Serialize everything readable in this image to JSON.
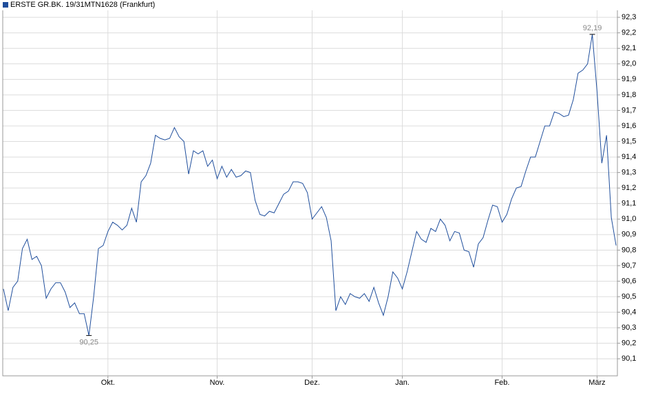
{
  "chart_data": {
    "type": "line",
    "series": [
      {
        "name": "ERSTE GR.BK. 19/31MTN1628 (Frankfurt)",
        "color": "#1f4e9c",
        "values": [
          90.55,
          90.41,
          90.56,
          90.6,
          90.81,
          90.87,
          90.74,
          90.76,
          90.7,
          90.49,
          90.55,
          90.59,
          90.59,
          90.53,
          90.43,
          90.46,
          90.39,
          90.39,
          90.25,
          90.5,
          90.81,
          90.83,
          90.92,
          90.98,
          90.96,
          90.93,
          90.96,
          91.07,
          90.98,
          91.24,
          91.28,
          91.36,
          91.54,
          91.52,
          91.51,
          91.52,
          91.59,
          91.53,
          91.5,
          91.29,
          91.44,
          91.42,
          91.44,
          91.34,
          91.38,
          91.26,
          91.34,
          91.27,
          91.32,
          91.27,
          91.28,
          91.31,
          91.3,
          91.12,
          91.03,
          91.02,
          91.05,
          91.04,
          91.1,
          91.16,
          91.18,
          91.24,
          91.24,
          91.23,
          91.17,
          91.0,
          91.04,
          91.08,
          91.01,
          90.86,
          90.41,
          90.5,
          90.45,
          90.52,
          90.5,
          90.49,
          90.52,
          90.47,
          90.56,
          90.46,
          90.38,
          90.5,
          90.66,
          90.62,
          90.55,
          90.66,
          90.79,
          90.92,
          90.87,
          90.85,
          90.94,
          90.92,
          91.0,
          90.96,
          90.86,
          90.92,
          90.91,
          90.8,
          90.79,
          90.69,
          90.84,
          90.88,
          90.99,
          91.09,
          91.08,
          90.98,
          91.03,
          91.13,
          91.2,
          91.21,
          91.31,
          91.4,
          91.4,
          91.5,
          91.6,
          91.6,
          91.69,
          91.68,
          91.66,
          91.67,
          91.77,
          91.94,
          91.96,
          92.0,
          92.19,
          91.82,
          91.36,
          91.54,
          91.01,
          90.83
        ]
      }
    ],
    "categories": [
      null,
      null,
      null,
      null,
      null,
      null,
      null,
      null,
      null,
      null,
      null,
      null,
      null,
      null,
      null,
      null,
      null,
      null,
      null,
      null,
      null,
      null,
      "Okt.",
      null,
      null,
      null,
      null,
      null,
      null,
      null,
      null,
      null,
      null,
      null,
      null,
      null,
      null,
      null,
      null,
      null,
      null,
      null,
      null,
      null,
      null,
      "Nov.",
      null,
      null,
      null,
      null,
      null,
      null,
      null,
      null,
      null,
      null,
      null,
      null,
      null,
      null,
      null,
      null,
      null,
      null,
      null,
      "Dez.",
      null,
      null,
      null,
      null,
      null,
      null,
      null,
      null,
      null,
      null,
      null,
      null,
      null,
      null,
      null,
      null,
      null,
      null,
      "Jan.",
      null,
      null,
      null,
      null,
      null,
      null,
      null,
      null,
      null,
      null,
      null,
      null,
      null,
      null,
      null,
      null,
      null,
      null,
      null,
      null,
      "Feb.",
      null,
      null,
      null,
      null,
      null,
      null,
      null,
      null,
      null,
      null,
      null,
      null,
      null,
      null,
      null,
      null,
      null,
      null,
      null,
      "März",
      null,
      null,
      null,
      null
    ],
    "annotations": [
      {
        "label": "92,19",
        "value": 92.19
      },
      {
        "label": "90,25",
        "value": 90.25
      }
    ],
    "ylim": [
      89.99,
      92.345
    ],
    "yticks": [
      {
        "value": 90.1,
        "label": "90,1"
      },
      {
        "value": 90.2,
        "label": "90,2"
      },
      {
        "value": 90.3,
        "label": "90,3"
      },
      {
        "value": 90.4,
        "label": "90,4"
      },
      {
        "value": 90.5,
        "label": "90,5"
      },
      {
        "value": 90.6,
        "label": "90,6"
      },
      {
        "value": 90.7,
        "label": "90,7"
      },
      {
        "value": 90.8,
        "label": "90,8"
      },
      {
        "value": 90.9,
        "label": "90,9"
      },
      {
        "value": 91.0,
        "label": "91,0"
      },
      {
        "value": 91.1,
        "label": "91,1"
      },
      {
        "value": 91.2,
        "label": "91,2"
      },
      {
        "value": 91.3,
        "label": "91,3"
      },
      {
        "value": 91.4,
        "label": "91,4"
      },
      {
        "value": 91.5,
        "label": "91,5"
      },
      {
        "value": 91.6,
        "label": "91,6"
      },
      {
        "value": 91.7,
        "label": "91,7"
      },
      {
        "value": 91.8,
        "label": "91,8"
      },
      {
        "value": 91.9,
        "label": "91,9"
      },
      {
        "value": 92.0,
        "label": "92,0"
      },
      {
        "value": 92.1,
        "label": "92,1"
      },
      {
        "value": 92.2,
        "label": "92,2"
      },
      {
        "value": 92.3,
        "label": "92,3"
      }
    ],
    "grid": true
  }
}
